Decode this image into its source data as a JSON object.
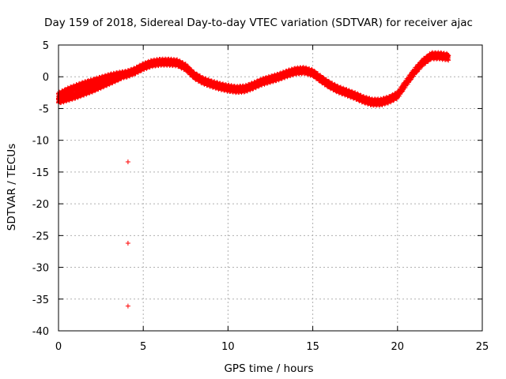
{
  "chart_data": {
    "type": "scatter",
    "title": "Day 159 of 2018, Sidereal Day-to-day VTEC variation (SDTVAR) for receiver ajac",
    "xlabel": "GPS time / hours",
    "ylabel": "SDTVAR / TECUs",
    "xlim": [
      0,
      25
    ],
    "ylim": [
      -40,
      5
    ],
    "x_ticks": [
      0,
      5,
      10,
      15,
      20,
      25
    ],
    "y_ticks": [
      5,
      0,
      -5,
      -10,
      -15,
      -20,
      -25,
      -30,
      -35,
      -40
    ],
    "grid": true,
    "marker": "+",
    "color": "#ff0000",
    "series": [
      {
        "name": "SDTVAR",
        "trend": {
          "x": [
            0.0,
            0.3,
            0.6,
            1.0,
            1.5,
            2.0,
            2.5,
            3.0,
            3.5,
            4.0,
            4.5,
            5.0,
            5.5,
            6.0,
            6.5,
            7.0,
            7.5,
            8.0,
            8.5,
            9.0,
            9.5,
            10.0,
            10.5,
            11.0,
            11.5,
            12.0,
            12.5,
            13.0,
            13.5,
            14.0,
            14.5,
            15.0,
            15.5,
            16.0,
            16.5,
            17.0,
            17.5,
            18.0,
            18.5,
            19.0,
            19.5,
            20.0,
            20.5,
            21.0,
            21.5,
            22.0,
            22.5,
            23.0
          ],
          "y": [
            -3.0,
            -2.6,
            -2.2,
            -1.8,
            -1.3,
            -0.9,
            -0.5,
            -0.1,
            0.2,
            0.4,
            0.9,
            1.6,
            2.1,
            2.3,
            2.3,
            2.2,
            1.5,
            0.2,
            -0.6,
            -1.1,
            -1.5,
            -1.8,
            -2.0,
            -1.9,
            -1.4,
            -0.8,
            -0.4,
            0.0,
            0.5,
            0.9,
            1.0,
            0.6,
            -0.4,
            -1.3,
            -2.0,
            -2.5,
            -3.0,
            -3.6,
            -4.0,
            -4.0,
            -3.6,
            -2.9,
            -1.0,
            0.8,
            2.3,
            3.3,
            3.3,
            3.1
          ],
          "band": 0.8
        },
        "extra": {
          "x": [
            0.0,
            0.5,
            1.0,
            1.5,
            2.0,
            2.5,
            3.0,
            3.5,
            4.0
          ],
          "y": [
            -3.8,
            -3.4,
            -3.0,
            -2.5,
            -2.0,
            -1.4,
            -0.8,
            -0.2,
            0.5
          ],
          "band": 0.6
        },
        "outliers": {
          "x": [
            4.1,
            4.1,
            4.1
          ],
          "y": [
            -13.4,
            -26.2,
            -36.1
          ]
        }
      }
    ]
  }
}
